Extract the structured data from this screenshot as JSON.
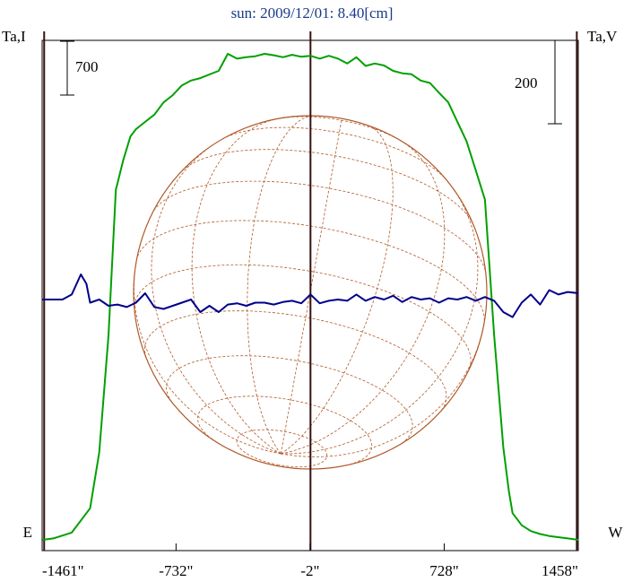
{
  "chart_data": {
    "type": "line",
    "title": "sun: 2009/12/01: 8.40[cm]",
    "ylabel_left": "Ta,I",
    "ylabel_right": "Ta,V",
    "scale_left": "700",
    "scale_right": "200",
    "xlim": [
      -1461,
      1458
    ],
    "ticks": [
      {
        "value": -1461,
        "label": "-1461\""
      },
      {
        "value": -732,
        "label": "-732\""
      },
      {
        "value": -2,
        "label": "-2\""
      },
      {
        "value": 728,
        "label": "728\""
      },
      {
        "value": 1458,
        "label": "1458\""
      }
    ],
    "limb_lines": [
      -1450,
      0,
      1450
    ],
    "markers": [
      {
        "x": -1540,
        "label": "E"
      },
      {
        "x": 1660,
        "label": "W"
      }
    ],
    "colors": {
      "intensity": "#00a000",
      "polarization": "#00008b",
      "disk": "#b05a2a",
      "limb": "#3a1010",
      "title": "#1a3a8a"
    },
    "series": [
      {
        "key": "intensity",
        "x": [
          -1460,
          -1400,
          -1300,
          -1200,
          -1150,
          -1100,
          -1060,
          -1020,
          -980,
          -950,
          -900,
          -850,
          -800,
          -750,
          -700,
          -650,
          -600,
          -500,
          -450,
          -400,
          -350,
          -300,
          -250,
          -200,
          -150,
          -100,
          -50,
          0,
          50,
          100,
          150,
          200,
          250,
          300,
          350,
          400,
          450,
          500,
          550,
          600,
          650,
          700,
          750,
          800,
          850,
          900,
          950,
          1000,
          1050,
          1080,
          1100,
          1150,
          1200,
          1250,
          1300,
          1400,
          1460
        ],
        "y": [
          0,
          3,
          15,
          65,
          180,
          420,
          720,
          780,
          830,
          845,
          860,
          875,
          900,
          915,
          935,
          945,
          950,
          965,
          1000,
          990,
          993,
          995,
          1000,
          997,
          993,
          998,
          994,
          996,
          990,
          996,
          990,
          980,
          993,
          975,
          980,
          976,
          965,
          960,
          958,
          945,
          940,
          920,
          900,
          860,
          820,
          760,
          700,
          420,
          190,
          100,
          55,
          30,
          18,
          12,
          8,
          3,
          0
        ]
      },
      {
        "key": "polarization",
        "x": [
          -1460,
          -1350,
          -1300,
          -1250,
          -1220,
          -1200,
          -1150,
          -1100,
          -1050,
          -1000,
          -950,
          -900,
          -850,
          -800,
          -750,
          -700,
          -650,
          -600,
          -550,
          -500,
          -450,
          -400,
          -350,
          -300,
          -250,
          -200,
          -150,
          -100,
          -50,
          0,
          50,
          100,
          150,
          200,
          250,
          300,
          350,
          400,
          450,
          500,
          550,
          600,
          650,
          700,
          750,
          800,
          850,
          900,
          950,
          1000,
          1050,
          1100,
          1150,
          1200,
          1250,
          1300,
          1350,
          1400,
          1460
        ],
        "y": [
          0,
          0,
          8,
          40,
          25,
          -5,
          0,
          -10,
          -8,
          -12,
          -5,
          10,
          -12,
          -15,
          -10,
          -5,
          0,
          -20,
          -10,
          -20,
          -8,
          -6,
          -10,
          -5,
          -5,
          -8,
          -4,
          -2,
          -6,
          8,
          -6,
          -2,
          0,
          -2,
          8,
          -2,
          4,
          0,
          6,
          -4,
          4,
          0,
          2,
          -5,
          2,
          0,
          4,
          -2,
          4,
          -2,
          -20,
          -28,
          -5,
          8,
          -8,
          15,
          8,
          12,
          10
        ]
      }
    ]
  }
}
